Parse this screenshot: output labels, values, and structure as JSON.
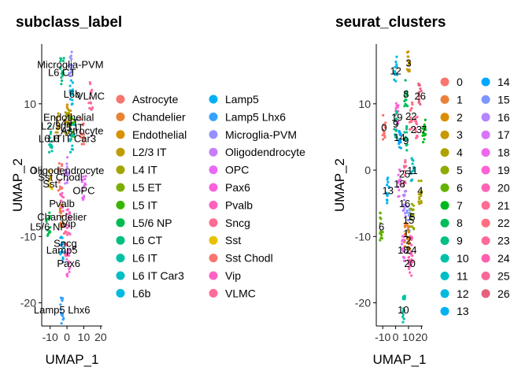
{
  "chart_data": [
    {
      "type": "scatter",
      "title": "subclass_label",
      "xlabel": "UMAP_1",
      "ylabel": "UMAP_2",
      "xlim": [
        -15,
        21
      ],
      "ylim": [
        -23.5,
        19
      ],
      "xticks": [
        -10,
        0,
        10,
        20
      ],
      "xtick_labels": [
        "-10",
        "0",
        "10",
        "20"
      ],
      "yticks": [
        -20,
        -10,
        0,
        10
      ],
      "ytick_labels": [
        "-20",
        "-10",
        "0",
        "10"
      ],
      "legend_position": "right",
      "legend_columns": 2,
      "legend": [
        {
          "name": "Astrocyte",
          "color": "#F8766D"
        },
        {
          "name": "Chandelier",
          "color": "#EA8331"
        },
        {
          "name": "Endothelial",
          "color": "#D89000"
        },
        {
          "name": "L2/3 IT",
          "color": "#C09B00"
        },
        {
          "name": "L4 IT",
          "color": "#A3A500"
        },
        {
          "name": "L5 ET",
          "color": "#7CAE00"
        },
        {
          "name": "L5 IT",
          "color": "#39B600"
        },
        {
          "name": "L5/6 NP",
          "color": "#00BB4E"
        },
        {
          "name": "L6 CT",
          "color": "#00BF7D"
        },
        {
          "name": "L6 IT",
          "color": "#00C1A3"
        },
        {
          "name": "L6 IT Car3",
          "color": "#00BFC4"
        },
        {
          "name": "L6b",
          "color": "#00BAE0"
        },
        {
          "name": "Lamp5",
          "color": "#00B0F6"
        },
        {
          "name": "Lamp5 Lhx6",
          "color": "#35A2FF"
        },
        {
          "name": "Microglia-PVM",
          "color": "#9590FF"
        },
        {
          "name": "Oligodendrocyte",
          "color": "#C77CFF"
        },
        {
          "name": "OPC",
          "color": "#E76BF3"
        },
        {
          "name": "Pax6",
          "color": "#FA62DB"
        },
        {
          "name": "Pvalb",
          "color": "#FF62BC"
        },
        {
          "name": "Sncg",
          "color": "#FF6C91"
        },
        {
          "name": "Sst",
          "color": "#E6C300"
        },
        {
          "name": "Sst Chodl",
          "color": "#F8766D"
        },
        {
          "name": "Vip",
          "color": "#FF61C3"
        },
        {
          "name": "VLMC",
          "color": "#FF6A98"
        }
      ],
      "clusters": [
        {
          "label": "Microglia-PVM",
          "x": 2,
          "y": 16,
          "color": "#9590FF"
        },
        {
          "label": "L6 CT",
          "x": -3,
          "y": 14.8,
          "color": "#00BF7D"
        },
        {
          "label": "L6b",
          "x": 3,
          "y": 11.5,
          "color": "#00BAE0"
        },
        {
          "label": "VLMC",
          "x": 14,
          "y": 11.2,
          "color": "#FF6A98"
        },
        {
          "label": "Endothelial",
          "x": 1,
          "y": 8,
          "color": "#D89000"
        },
        {
          "label": "L2/3 IT",
          "x": -6,
          "y": 6.7,
          "color": "#C09B00"
        },
        {
          "label": "L4 IT",
          "x": 0,
          "y": 7.2,
          "color": "#A3A500"
        },
        {
          "label": "L5 IT",
          "x": 3,
          "y": 6.5,
          "color": "#39B600"
        },
        {
          "label": "Astrocyte",
          "x": 9,
          "y": 6,
          "color": "#F8766D"
        },
        {
          "label": "L6 IT",
          "x": -10,
          "y": 4.8,
          "color": "#00C1A3"
        },
        {
          "label": "L6 IT Car3",
          "x": 3,
          "y": 4.8,
          "color": "#00BFC4"
        },
        {
          "label": "Oligodendrocyte",
          "x": 0,
          "y": 0,
          "color": "#C77CFF"
        },
        {
          "label": "Sst Chodl",
          "x": -4,
          "y": -1,
          "color": "#F8766D"
        },
        {
          "label": "Sst",
          "x": -10,
          "y": -2,
          "color": "#E6C300"
        },
        {
          "label": "OPC",
          "x": 10,
          "y": -3,
          "color": "#E76BF3"
        },
        {
          "label": "Pvalb",
          "x": -3,
          "y": -5,
          "color": "#FF62BC"
        },
        {
          "label": "Chandelier",
          "x": -3,
          "y": -7,
          "color": "#EA8331"
        },
        {
          "label": "Vip",
          "x": 1,
          "y": -8,
          "color": "#FF61C3"
        },
        {
          "label": "L5/6 NP",
          "x": -11,
          "y": -8.5,
          "color": "#00BB4E"
        },
        {
          "label": "Sncg",
          "x": -1,
          "y": -11,
          "color": "#FF6C91"
        },
        {
          "label": "Lamp5",
          "x": -3,
          "y": -12,
          "color": "#00B0F6"
        },
        {
          "label": "Pax6",
          "x": 1,
          "y": -14,
          "color": "#FA62DB"
        },
        {
          "label": "Lamp5 Lhx6",
          "x": -3,
          "y": -21,
          "color": "#35A2FF"
        }
      ]
    },
    {
      "type": "scatter",
      "title": "seurat_clusters",
      "xlabel": "UMAP_1",
      "ylabel": "UMAP_2",
      "xlim": [
        -15,
        21
      ],
      "ylim": [
        -23.5,
        19
      ],
      "xticks": [
        -10,
        0,
        10,
        20
      ],
      "xtick_labels": [
        "-10",
        "0",
        "10",
        "20"
      ],
      "yticks": [
        -20,
        -10,
        0,
        10
      ],
      "ytick_labels": [
        "-20",
        "-10",
        "0",
        "10"
      ],
      "legend_position": "right",
      "legend_columns": 2,
      "legend": [
        {
          "name": "0",
          "color": "#F8766D"
        },
        {
          "name": "1",
          "color": "#EC8239"
        },
        {
          "name": "2",
          "color": "#DB8E00"
        },
        {
          "name": "3",
          "color": "#C79800"
        },
        {
          "name": "4",
          "color": "#AEA200"
        },
        {
          "name": "5",
          "color": "#8FAA00"
        },
        {
          "name": "6",
          "color": "#64B200"
        },
        {
          "name": "7",
          "color": "#00B81B"
        },
        {
          "name": "8",
          "color": "#00BD5C"
        },
        {
          "name": "9",
          "color": "#00C085"
        },
        {
          "name": "10",
          "color": "#00C1A7"
        },
        {
          "name": "11",
          "color": "#00BFC4"
        },
        {
          "name": "12",
          "color": "#00BADE"
        },
        {
          "name": "13",
          "color": "#00B2F3"
        },
        {
          "name": "14",
          "color": "#00A6FF"
        },
        {
          "name": "15",
          "color": "#7C96FF"
        },
        {
          "name": "16",
          "color": "#B385FF"
        },
        {
          "name": "17",
          "color": "#D874FD"
        },
        {
          "name": "18",
          "color": "#EF67EB"
        },
        {
          "name": "19",
          "color": "#FD61D3"
        },
        {
          "name": "20",
          "color": "#FF63B6"
        },
        {
          "name": "21",
          "color": "#FF6B94"
        },
        {
          "name": "22",
          "color": "#FF6E7E"
        },
        {
          "name": "23",
          "color": "#FF6A98"
        },
        {
          "name": "24",
          "color": "#FF5FAA"
        },
        {
          "name": "25",
          "color": "#F7689A"
        },
        {
          "name": "26",
          "color": "#E6607C"
        }
      ],
      "clusters": [
        {
          "label": "3",
          "x": 10,
          "y": 16.2,
          "color": "#C79800"
        },
        {
          "label": "12",
          "x": 0,
          "y": 15,
          "color": "#00BADE"
        },
        {
          "label": "8",
          "x": 8,
          "y": 11.5,
          "color": "#00BD5C"
        },
        {
          "label": "26",
          "x": 19,
          "y": 11.2,
          "color": "#E6607C"
        },
        {
          "label": "19",
          "x": 1,
          "y": 8,
          "color": "#FD61D3"
        },
        {
          "label": "22",
          "x": 12,
          "y": 8.2,
          "color": "#FF6E7E"
        },
        {
          "label": "0",
          "x": -9,
          "y": 6.5,
          "color": "#F8766D"
        },
        {
          "label": "9",
          "x": 0,
          "y": 7,
          "color": "#00C085"
        },
        {
          "label": "23",
          "x": 16,
          "y": 6.2,
          "color": "#FF6A98"
        },
        {
          "label": "7",
          "x": 22,
          "y": 6.2,
          "color": "#00B81B"
        },
        {
          "label": "14",
          "x": 3,
          "y": 5,
          "color": "#00A6FF"
        },
        {
          "label": "9",
          "x": 8,
          "y": 4.5,
          "color": "#00C085"
        },
        {
          "label": "11",
          "x": 13,
          "y": 0,
          "color": "#00BFC4"
        },
        {
          "label": "25",
          "x": 7,
          "y": -0.5,
          "color": "#F7689A"
        },
        {
          "label": "18",
          "x": 3,
          "y": -2,
          "color": "#EF67EB"
        },
        {
          "label": "13",
          "x": -6,
          "y": -3,
          "color": "#00B2F3"
        },
        {
          "label": "4",
          "x": 19,
          "y": -3,
          "color": "#AEA200"
        },
        {
          "label": "16",
          "x": 7,
          "y": -5,
          "color": "#B385FF"
        },
        {
          "label": "15",
          "x": 10,
          "y": -7.5,
          "color": "#7C96FF"
        },
        {
          "label": "5",
          "x": 13,
          "y": -7,
          "color": "#8FAA00"
        },
        {
          "label": "6",
          "x": -11,
          "y": -8.5,
          "color": "#64B200"
        },
        {
          "label": "1",
          "x": 8,
          "y": -9.5,
          "color": "#EC8239"
        },
        {
          "label": "2",
          "x": 10,
          "y": -10.5,
          "color": "#DB8E00"
        },
        {
          "label": "18",
          "x": 6,
          "y": -12,
          "color": "#EF67EB"
        },
        {
          "label": "24",
          "x": 12,
          "y": -12,
          "color": "#FF5FAA"
        },
        {
          "label": "20",
          "x": 11,
          "y": -14,
          "color": "#FF63B6"
        },
        {
          "label": "10",
          "x": 6,
          "y": -21,
          "color": "#00C1A7"
        }
      ]
    }
  ]
}
